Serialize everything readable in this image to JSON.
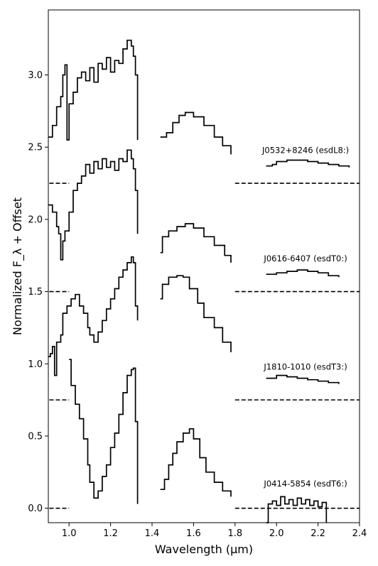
{
  "chart_data": {
    "type": "line",
    "xlabel": "Wavelength (μm)",
    "ylabel": "Normalized F_λ + Offset",
    "xlim": [
      0.9,
      2.4
    ],
    "ylim": [
      -0.1,
      3.45
    ],
    "x_ticks": [
      1.0,
      1.2,
      1.4,
      1.6,
      1.8,
      2.0,
      2.2,
      2.4
    ],
    "y_ticks": [
      0.0,
      0.5,
      1.0,
      1.5,
      2.0,
      2.5,
      3.0
    ],
    "grid": false,
    "line_color": "#000000",
    "series": [
      {
        "name": "J0532+8246 (esdL8:)",
        "offset": 2.25,
        "label_at": [
          2.14,
          2.46
        ],
        "points": [
          [
            0.9,
            2.57
          ],
          [
            0.92,
            2.65
          ],
          [
            0.94,
            2.78
          ],
          [
            0.96,
            2.85
          ],
          [
            0.97,
            3.0
          ],
          [
            0.98,
            3.07
          ],
          [
            0.99,
            2.55
          ],
          [
            1.0,
            2.8
          ],
          [
            1.02,
            2.88
          ],
          [
            1.04,
            2.98
          ],
          [
            1.06,
            3.02
          ],
          [
            1.08,
            2.96
          ],
          [
            1.1,
            3.05
          ],
          [
            1.12,
            2.95
          ],
          [
            1.14,
            3.08
          ],
          [
            1.16,
            3.04
          ],
          [
            1.18,
            3.12
          ],
          [
            1.2,
            3.02
          ],
          [
            1.22,
            3.1
          ],
          [
            1.24,
            3.08
          ],
          [
            1.26,
            3.18
          ],
          [
            1.28,
            3.24
          ],
          [
            1.3,
            3.2
          ],
          [
            1.31,
            3.13
          ],
          [
            1.32,
            3.0
          ],
          [
            1.33,
            2.55
          ],
          null,
          [
            1.44,
            2.57
          ],
          [
            1.47,
            2.6
          ],
          [
            1.5,
            2.67
          ],
          [
            1.53,
            2.72
          ],
          [
            1.56,
            2.74
          ],
          [
            1.6,
            2.71
          ],
          [
            1.65,
            2.65
          ],
          [
            1.7,
            2.57
          ],
          [
            1.74,
            2.51
          ],
          [
            1.78,
            2.45
          ],
          null,
          [
            1.95,
            2.37
          ],
          [
            1.98,
            2.38
          ],
          [
            2.0,
            2.4
          ],
          [
            2.05,
            2.41
          ],
          [
            2.1,
            2.41
          ],
          [
            2.15,
            2.4
          ],
          [
            2.2,
            2.39
          ],
          [
            2.25,
            2.38
          ],
          [
            2.3,
            2.37
          ],
          [
            2.35,
            2.36
          ]
        ]
      },
      {
        "name": "J0616-6407 (esdT0:)",
        "offset": 1.5,
        "label_at": [
          2.14,
          1.71
        ],
        "points": [
          [
            0.9,
            2.1
          ],
          [
            0.92,
            2.05
          ],
          [
            0.94,
            1.95
          ],
          [
            0.95,
            1.9
          ],
          [
            0.96,
            1.72
          ],
          [
            0.97,
            1.85
          ],
          [
            0.98,
            1.92
          ],
          [
            1.0,
            2.05
          ],
          [
            1.02,
            2.2
          ],
          [
            1.04,
            2.25
          ],
          [
            1.06,
            2.3
          ],
          [
            1.08,
            2.38
          ],
          [
            1.1,
            2.32
          ],
          [
            1.12,
            2.4
          ],
          [
            1.14,
            2.35
          ],
          [
            1.16,
            2.42
          ],
          [
            1.18,
            2.36
          ],
          [
            1.2,
            2.4
          ],
          [
            1.22,
            2.34
          ],
          [
            1.24,
            2.42
          ],
          [
            1.26,
            2.4
          ],
          [
            1.28,
            2.48
          ],
          [
            1.3,
            2.42
          ],
          [
            1.31,
            2.35
          ],
          [
            1.32,
            2.2
          ],
          [
            1.33,
            1.9
          ],
          null,
          [
            1.44,
            1.77
          ],
          [
            1.45,
            1.88
          ],
          [
            1.48,
            1.92
          ],
          [
            1.52,
            1.95
          ],
          [
            1.56,
            1.97
          ],
          [
            1.6,
            1.94
          ],
          [
            1.65,
            1.88
          ],
          [
            1.7,
            1.82
          ],
          [
            1.75,
            1.75
          ],
          [
            1.78,
            1.7
          ],
          null,
          [
            1.95,
            1.62
          ],
          [
            2.0,
            1.63
          ],
          [
            2.05,
            1.64
          ],
          [
            2.1,
            1.65
          ],
          [
            2.15,
            1.64
          ],
          [
            2.2,
            1.63
          ],
          [
            2.25,
            1.61
          ],
          [
            2.3,
            1.6
          ]
        ]
      },
      {
        "name": "J1810-1010 (esdT3:)",
        "offset": 0.75,
        "label_at": [
          2.14,
          0.96
        ],
        "points": [
          [
            0.9,
            1.05
          ],
          [
            0.91,
            1.07
          ],
          [
            0.92,
            1.12
          ],
          [
            0.93,
            0.92
          ],
          [
            0.94,
            1.15
          ],
          [
            0.96,
            1.2
          ],
          [
            0.97,
            1.35
          ],
          [
            0.99,
            1.4
          ],
          [
            1.01,
            1.45
          ],
          [
            1.03,
            1.48
          ],
          [
            1.05,
            1.4
          ],
          [
            1.07,
            1.35
          ],
          [
            1.09,
            1.25
          ],
          [
            1.1,
            1.2
          ],
          [
            1.12,
            1.15
          ],
          [
            1.14,
            1.22
          ],
          [
            1.16,
            1.3
          ],
          [
            1.18,
            1.38
          ],
          [
            1.2,
            1.45
          ],
          [
            1.22,
            1.52
          ],
          [
            1.24,
            1.6
          ],
          [
            1.26,
            1.65
          ],
          [
            1.28,
            1.7
          ],
          [
            1.3,
            1.74
          ],
          [
            1.31,
            1.7
          ],
          [
            1.32,
            1.4
          ],
          [
            1.33,
            1.3
          ],
          null,
          [
            1.44,
            1.45
          ],
          [
            1.45,
            1.55
          ],
          [
            1.48,
            1.6
          ],
          [
            1.52,
            1.61
          ],
          [
            1.55,
            1.6
          ],
          [
            1.58,
            1.52
          ],
          [
            1.62,
            1.42
          ],
          [
            1.65,
            1.32
          ],
          [
            1.7,
            1.25
          ],
          [
            1.74,
            1.15
          ],
          [
            1.78,
            1.08
          ],
          null,
          [
            1.95,
            0.9
          ],
          [
            2.0,
            0.92
          ],
          [
            2.05,
            0.91
          ],
          [
            2.1,
            0.9
          ],
          [
            2.15,
            0.89
          ],
          [
            2.2,
            0.88
          ],
          [
            2.25,
            0.87
          ],
          [
            2.3,
            0.86
          ]
        ]
      },
      {
        "name": "J0414-5854 (esdT6:)",
        "offset": 0.0,
        "label_at": [
          2.14,
          0.15
        ],
        "points": [
          [
            1.0,
            1.03
          ],
          [
            1.01,
            0.85
          ],
          [
            1.03,
            0.72
          ],
          [
            1.05,
            0.62
          ],
          [
            1.07,
            0.48
          ],
          [
            1.09,
            0.3
          ],
          [
            1.1,
            0.18
          ],
          [
            1.12,
            0.07
          ],
          [
            1.14,
            0.12
          ],
          [
            1.16,
            0.22
          ],
          [
            1.18,
            0.3
          ],
          [
            1.2,
            0.42
          ],
          [
            1.22,
            0.52
          ],
          [
            1.24,
            0.65
          ],
          [
            1.26,
            0.8
          ],
          [
            1.28,
            0.92
          ],
          [
            1.3,
            0.96
          ],
          [
            1.31,
            0.97
          ],
          [
            1.32,
            0.6
          ],
          [
            1.33,
            0.03
          ],
          null,
          [
            1.44,
            0.13
          ],
          [
            1.46,
            0.2
          ],
          [
            1.48,
            0.3
          ],
          [
            1.5,
            0.38
          ],
          [
            1.52,
            0.46
          ],
          [
            1.55,
            0.52
          ],
          [
            1.58,
            0.55
          ],
          [
            1.6,
            0.48
          ],
          [
            1.63,
            0.35
          ],
          [
            1.66,
            0.25
          ],
          [
            1.7,
            0.18
          ],
          [
            1.74,
            0.12
          ],
          [
            1.78,
            0.08
          ],
          null,
          [
            1.95,
            -0.1
          ],
          [
            1.96,
            0.03
          ],
          [
            1.98,
            0.05
          ],
          [
            2.0,
            0.02
          ],
          [
            2.02,
            0.08
          ],
          [
            2.04,
            0.03
          ],
          [
            2.06,
            0.06
          ],
          [
            2.08,
            0.02
          ],
          [
            2.1,
            0.07
          ],
          [
            2.12,
            0.03
          ],
          [
            2.14,
            0.06
          ],
          [
            2.16,
            0.02
          ],
          [
            2.18,
            0.05
          ],
          [
            2.2,
            0.01
          ],
          [
            2.22,
            0.04
          ],
          [
            2.24,
            -0.1
          ]
        ]
      }
    ]
  }
}
